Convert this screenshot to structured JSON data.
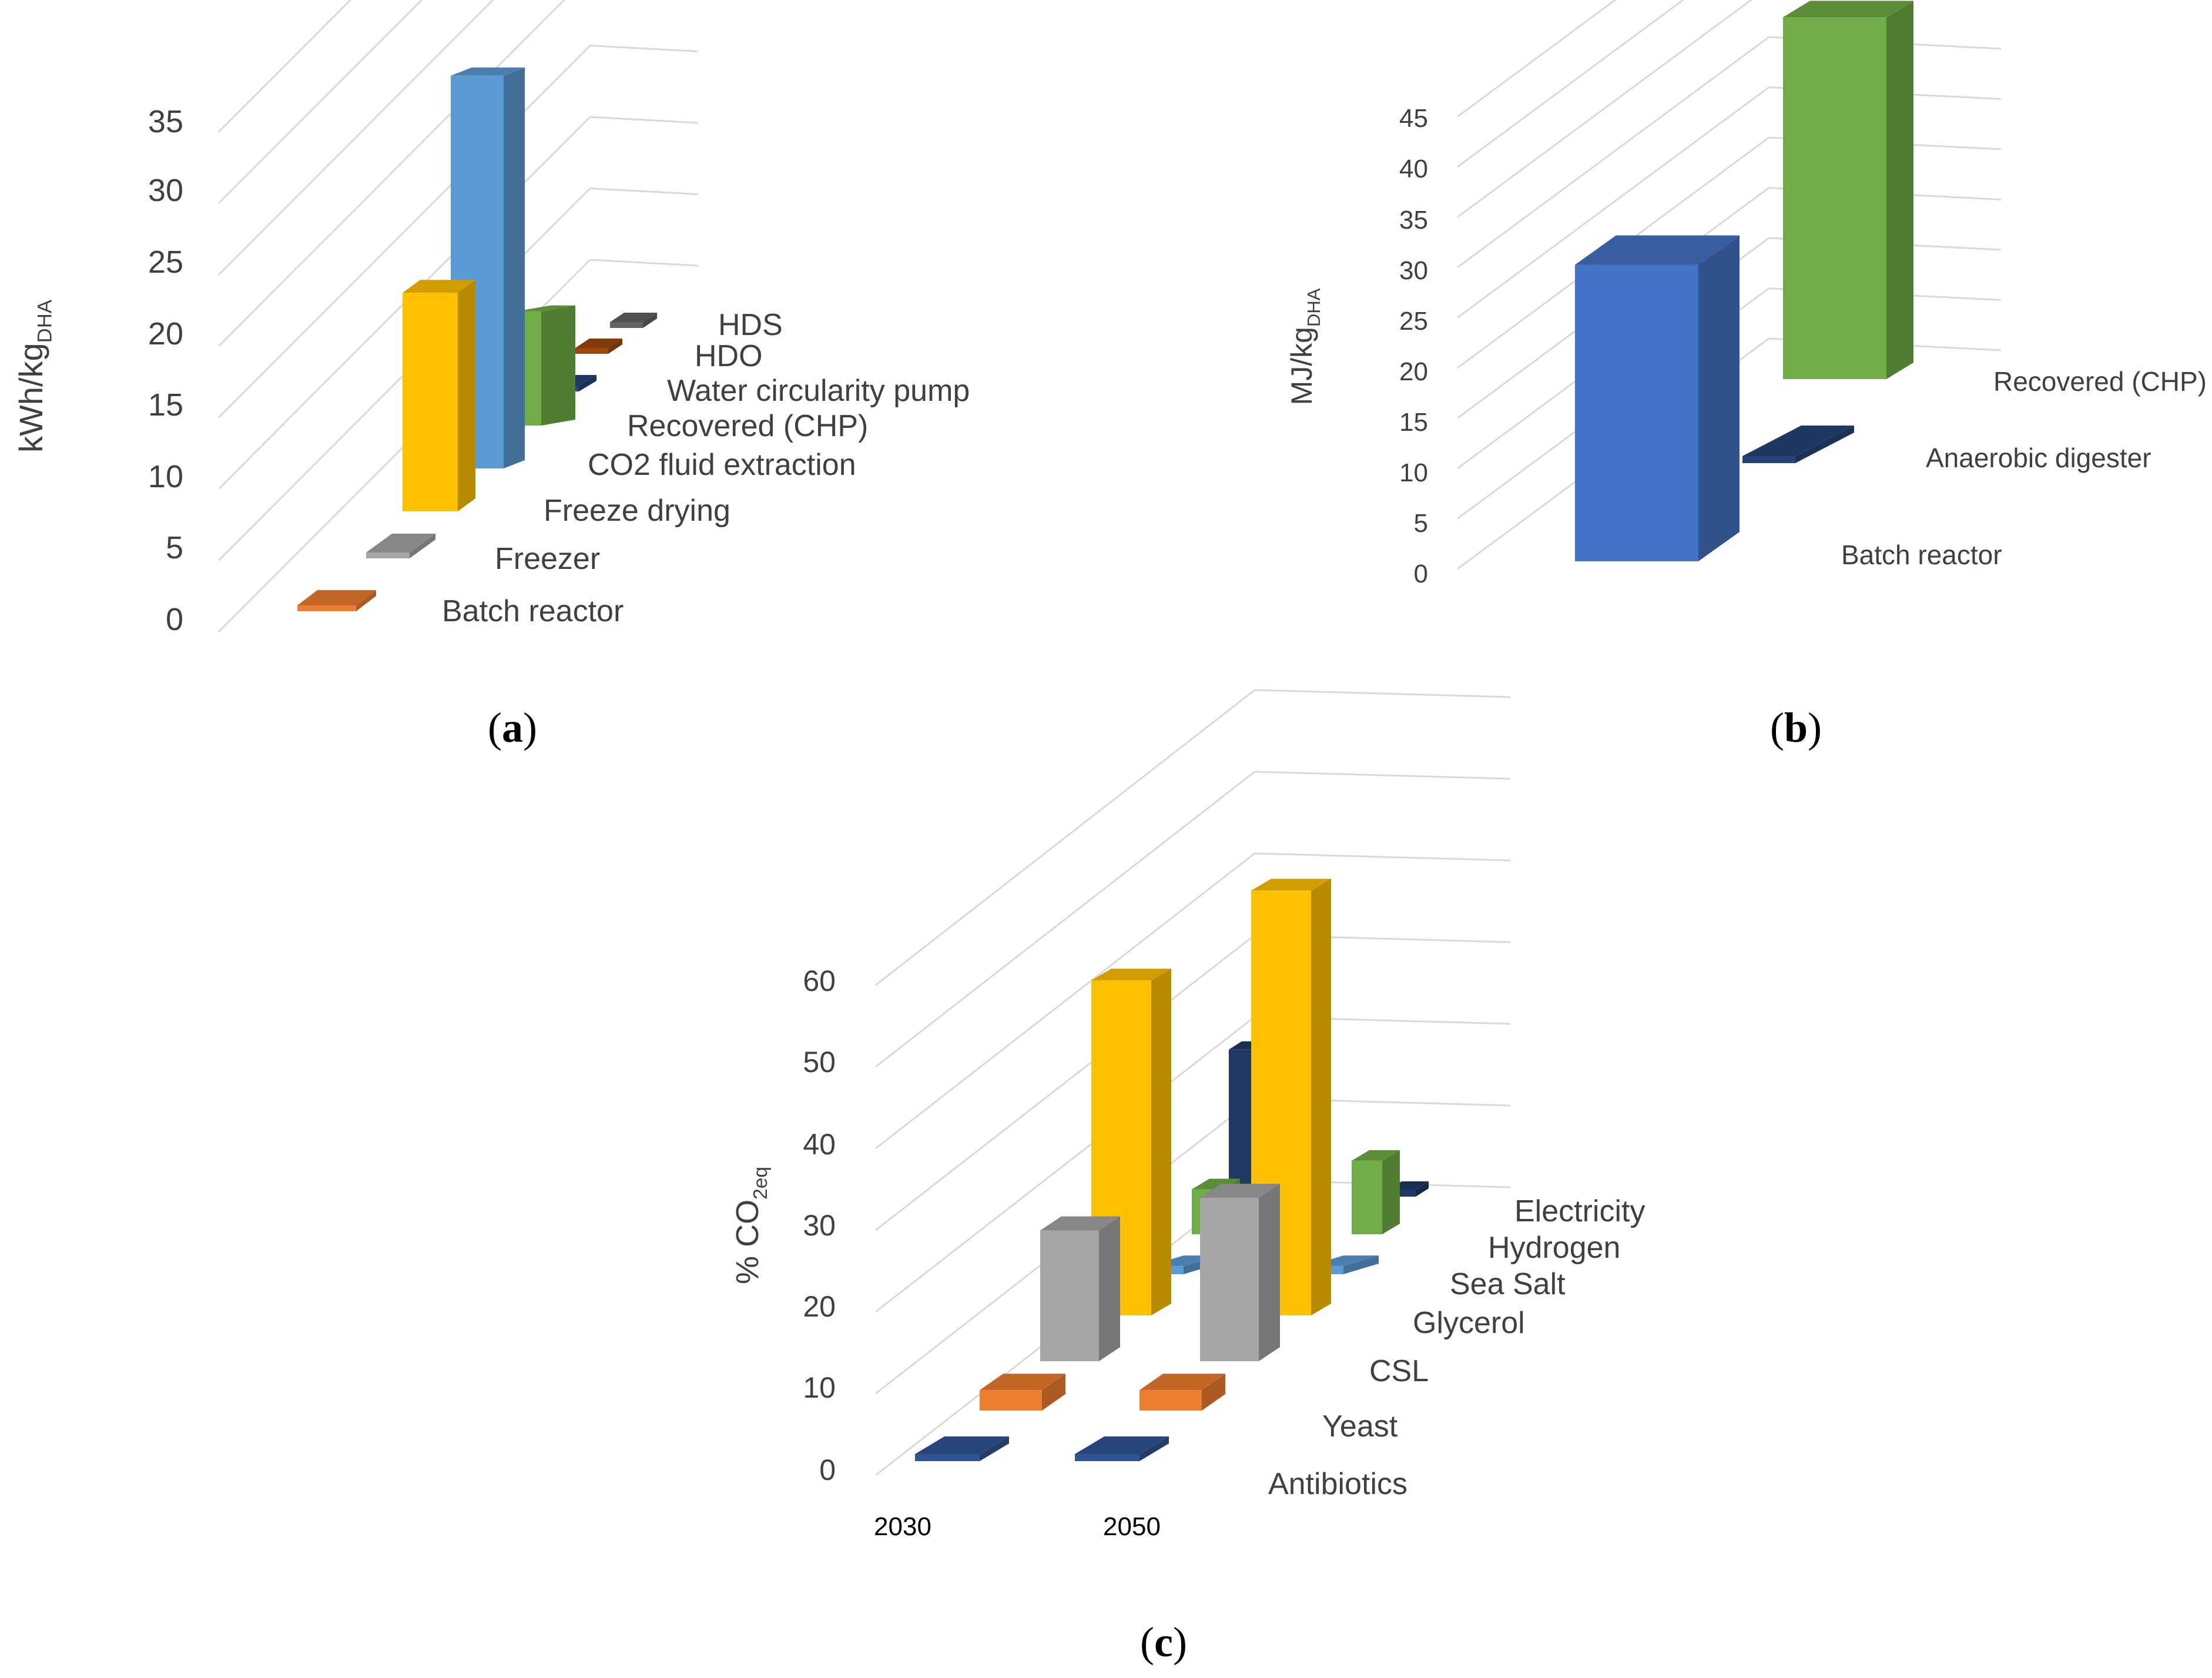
{
  "chart_data": [
    {
      "type": "bar",
      "panel_label": "a",
      "ylabel": "kWh/kg",
      "ylabel_sub": "DHA",
      "ylim": [
        0,
        35
      ],
      "yticks": [
        "0",
        "5",
        "10",
        "15",
        "20",
        "25",
        "30",
        "35"
      ],
      "categories": [
        "Batch reactor",
        "Freezer",
        "Freeze drying",
        "CO2 fluid extraction",
        "Recovered (CHP)",
        "Water circularity pump",
        "HDO",
        "HDS"
      ],
      "values": [
        0.2,
        0.2,
        15.3,
        27.5,
        8.0,
        0.2,
        0.3,
        0.2
      ],
      "colors": [
        "#ed7d31",
        "#a5a5a5",
        "#ffc000",
        "#5b9bd5",
        "#70ad47",
        "#264478",
        "#9e480e",
        "#636363"
      ]
    },
    {
      "type": "bar",
      "panel_label": "b",
      "ylabel": "MJ/kg",
      "ylabel_sub": "DHA",
      "ylim": [
        0,
        45
      ],
      "yticks": [
        "0",
        "5",
        "10",
        "15",
        "20",
        "25",
        "30",
        "35",
        "40",
        "45"
      ],
      "categories": [
        "Batch reactor",
        "Anaerobic digester",
        "Recovered (CHP)"
      ],
      "values": [
        29.5,
        0.5,
        36.0
      ],
      "colors": [
        "#4472c4",
        "#264478",
        "#70ad47"
      ]
    },
    {
      "type": "bar",
      "panel_label": "c",
      "ylabel": "% CO",
      "ylabel_sub": "2eq",
      "ylim": [
        0,
        60
      ],
      "yticks": [
        "0",
        "10",
        "20",
        "30",
        "40",
        "50",
        "60"
      ],
      "groups": [
        "2030",
        "2050"
      ],
      "categories": [
        "Antibiotics",
        "Yeast",
        "CSL",
        "Glycerol",
        "Sea Salt",
        "Hydrogen",
        "Electricity"
      ],
      "series": [
        {
          "name": "2030",
          "values": [
            0.3,
            2.5,
            16.0,
            41.0,
            1.0,
            5.5,
            18.0
          ]
        },
        {
          "name": "2050",
          "values": [
            0.3,
            2.5,
            20.0,
            52.0,
            1.0,
            9.0,
            0.2
          ]
        }
      ],
      "colors": [
        "#2f5597",
        "#ed7d31",
        "#a5a5a5",
        "#ffc000",
        "#5b9bd5",
        "#70ad47",
        "#1f3864"
      ]
    }
  ]
}
